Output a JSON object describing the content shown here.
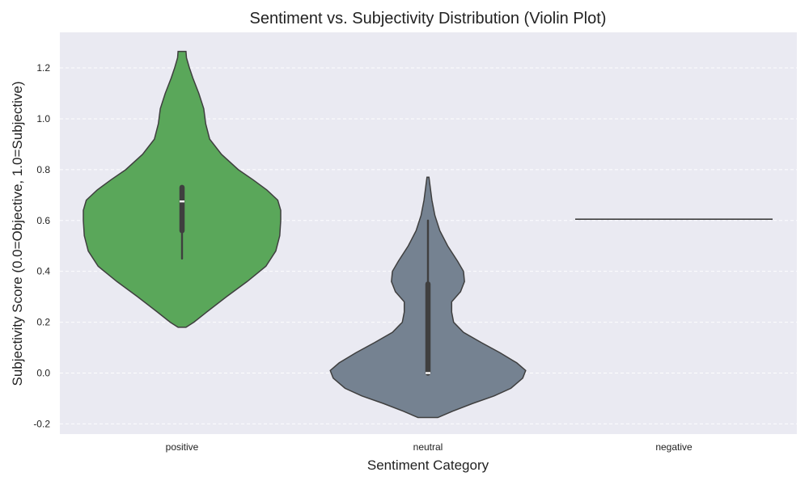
{
  "chart_data": {
    "type": "violin",
    "title": "Sentiment vs. Subjectivity Distribution (Violin Plot)",
    "xlabel": "Sentiment Category",
    "ylabel": "Subjectivity Score (0.0=Objective, 1.0=Subjective)",
    "categories": [
      "positive",
      "neutral",
      "negative"
    ],
    "ylim": [
      -0.24,
      1.34
    ],
    "yticks": [
      -0.2,
      0.0,
      0.2,
      0.4,
      0.6,
      0.8,
      1.0,
      1.2
    ],
    "ytick_labels": [
      "-0.2",
      "0.0",
      "0.2",
      "0.4",
      "0.6",
      "0.8",
      "1.0",
      "1.2"
    ],
    "grid": true,
    "background_color": "#eaeaf2",
    "violins": [
      {
        "category": "positive",
        "color": "#5aa75a",
        "min": 0.18,
        "max": 1.265,
        "box": {
          "whisker_low": 0.45,
          "q1": 0.56,
          "median": 0.675,
          "q3": 0.73
        },
        "density_profile": [
          [
            0.18,
            0.04
          ],
          [
            0.2,
            0.12
          ],
          [
            0.24,
            0.25
          ],
          [
            0.3,
            0.45
          ],
          [
            0.36,
            0.66
          ],
          [
            0.42,
            0.85
          ],
          [
            0.48,
            0.95
          ],
          [
            0.54,
            0.99
          ],
          [
            0.6,
            1.0
          ],
          [
            0.64,
            1.0
          ],
          [
            0.68,
            0.97
          ],
          [
            0.72,
            0.86
          ],
          [
            0.76,
            0.72
          ],
          [
            0.8,
            0.57
          ],
          [
            0.86,
            0.4
          ],
          [
            0.92,
            0.28
          ],
          [
            0.98,
            0.24
          ],
          [
            1.04,
            0.22
          ],
          [
            1.1,
            0.17
          ],
          [
            1.16,
            0.11
          ],
          [
            1.2,
            0.075
          ],
          [
            1.24,
            0.045
          ],
          [
            1.265,
            0.04
          ]
        ]
      },
      {
        "category": "neutral",
        "color": "#758291",
        "min": -0.175,
        "max": 0.77,
        "box": {
          "whisker_low": 0.0,
          "q1": 0.0,
          "median": 0.0,
          "q3": 0.35,
          "whisker_high": 0.6
        },
        "density_profile": [
          [
            -0.175,
            0.1
          ],
          [
            -0.15,
            0.25
          ],
          [
            -0.12,
            0.45
          ],
          [
            -0.09,
            0.67
          ],
          [
            -0.06,
            0.84
          ],
          [
            -0.02,
            0.96
          ],
          [
            0.01,
            0.99
          ],
          [
            0.04,
            0.9
          ],
          [
            0.08,
            0.73
          ],
          [
            0.12,
            0.54
          ],
          [
            0.16,
            0.36
          ],
          [
            0.2,
            0.26
          ],
          [
            0.24,
            0.24
          ],
          [
            0.28,
            0.24
          ],
          [
            0.32,
            0.33
          ],
          [
            0.36,
            0.37
          ],
          [
            0.4,
            0.36
          ],
          [
            0.44,
            0.3
          ],
          [
            0.5,
            0.2
          ],
          [
            0.56,
            0.12
          ],
          [
            0.62,
            0.07
          ],
          [
            0.68,
            0.04
          ],
          [
            0.74,
            0.02
          ],
          [
            0.77,
            0.01
          ]
        ]
      },
      {
        "category": "negative",
        "color": "#3f3f3f",
        "single_value": 0.605
      }
    ]
  }
}
